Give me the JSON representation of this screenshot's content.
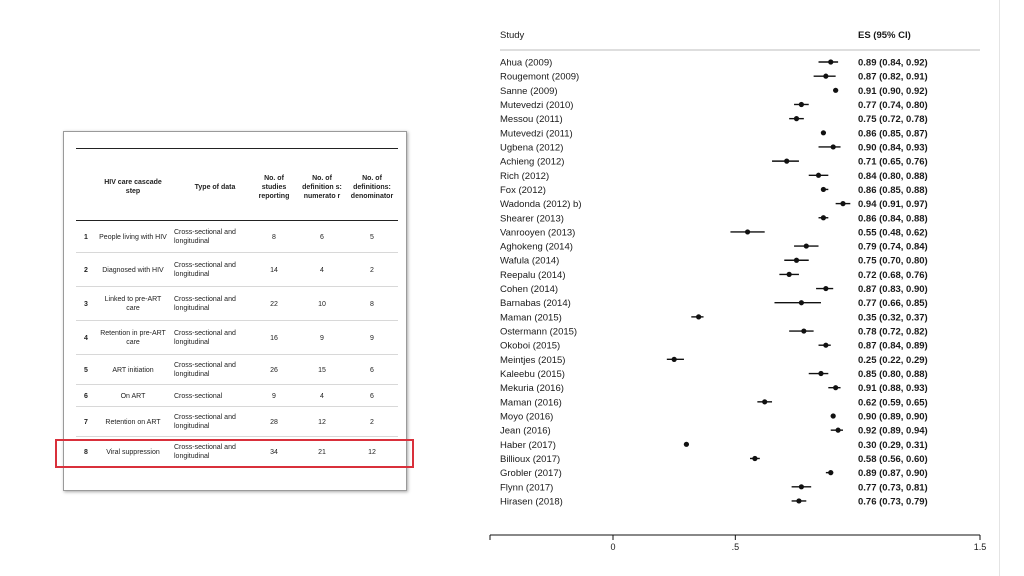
{
  "table": {
    "headers": {
      "step": "HIV care cascade step",
      "type": "Type of data",
      "studies": "No. of studies reporting",
      "numerator": "No. of definition s: numerato r",
      "denominator": "No. of definitions: denominator"
    },
    "rows": [
      {
        "num": "1",
        "step": "People living with HIV",
        "type": "Cross-sectional and longitudinal",
        "studies": "8",
        "numerator": "6",
        "denominator": "5"
      },
      {
        "num": "2",
        "step": "Diagnosed with HIV",
        "type": "Cross-sectional and longitudinal",
        "studies": "14",
        "numerator": "4",
        "denominator": "2"
      },
      {
        "num": "3",
        "step": "Linked to pre-ART care",
        "type": "Cross-sectional and longitudinal",
        "studies": "22",
        "numerator": "10",
        "denominator": "8"
      },
      {
        "num": "4",
        "step": "Retention in pre-ART care",
        "type": "Cross-sectional and longitudinal",
        "studies": "16",
        "numerator": "9",
        "denominator": "9"
      },
      {
        "num": "5",
        "step": "ART initiation",
        "type": "Cross-sectional and longitudinal",
        "studies": "26",
        "numerator": "15",
        "denominator": "6"
      },
      {
        "num": "6",
        "step": "On ART",
        "type": "Cross-sectional",
        "studies": "9",
        "numerator": "4",
        "denominator": "6"
      },
      {
        "num": "7",
        "step": "Retention on ART",
        "type": "Cross-sectional and longitudinal",
        "studies": "28",
        "numerator": "12",
        "denominator": "2"
      },
      {
        "num": "8",
        "step": "Viral suppression",
        "type": "Cross-sectional and longitudinal",
        "studies": "34",
        "numerator": "21",
        "denominator": "12"
      }
    ],
    "highlight_color": "#d9303b"
  },
  "chart_data": {
    "type": "scatter",
    "title": "",
    "column_headers": {
      "study": "Study",
      "estimate": "ES (95% CI)"
    },
    "xlim": [
      -0.5,
      1.5
    ],
    "x_ticks": [
      0,
      0.5,
      1.5
    ],
    "x_tick_labels": [
      "0",
      ".5",
      "1.5"
    ],
    "studies": [
      {
        "study": "Ahua (2009)",
        "es": 0.89,
        "lo": 0.84,
        "hi": 0.92,
        "label": "0.89 (0.84, 0.92)"
      },
      {
        "study": "Rougemont (2009)",
        "es": 0.87,
        "lo": 0.82,
        "hi": 0.91,
        "label": "0.87 (0.82, 0.91)"
      },
      {
        "study": "Sanne (2009)",
        "es": 0.91,
        "lo": 0.9,
        "hi": 0.92,
        "label": "0.91 (0.90, 0.92)"
      },
      {
        "study": "Mutevedzi (2010)",
        "es": 0.77,
        "lo": 0.74,
        "hi": 0.8,
        "label": "0.77 (0.74, 0.80)"
      },
      {
        "study": "Messou (2011)",
        "es": 0.75,
        "lo": 0.72,
        "hi": 0.78,
        "label": "0.75 (0.72, 0.78)"
      },
      {
        "study": "Mutevedzi (2011)",
        "es": 0.86,
        "lo": 0.85,
        "hi": 0.87,
        "label": "0.86 (0.85, 0.87)"
      },
      {
        "study": "Ugbena (2012)",
        "es": 0.9,
        "lo": 0.84,
        "hi": 0.93,
        "label": "0.90 (0.84, 0.93)"
      },
      {
        "study": "Achieng (2012)",
        "es": 0.71,
        "lo": 0.65,
        "hi": 0.76,
        "label": "0.71 (0.65, 0.76)"
      },
      {
        "study": "Rich (2012)",
        "es": 0.84,
        "lo": 0.8,
        "hi": 0.88,
        "label": "0.84 (0.80, 0.88)"
      },
      {
        "study": "Fox (2012)",
        "es": 0.86,
        "lo": 0.85,
        "hi": 0.88,
        "label": "0.86 (0.85, 0.88)"
      },
      {
        "study": "Wadonda (2012) b)",
        "es": 0.94,
        "lo": 0.91,
        "hi": 0.97,
        "label": "0.94 (0.91, 0.97)"
      },
      {
        "study": "Shearer (2013)",
        "es": 0.86,
        "lo": 0.84,
        "hi": 0.88,
        "label": "0.86 (0.84, 0.88)"
      },
      {
        "study": "Vanrooyen (2013)",
        "es": 0.55,
        "lo": 0.48,
        "hi": 0.62,
        "label": "0.55 (0.48, 0.62)"
      },
      {
        "study": "Aghokeng (2014)",
        "es": 0.79,
        "lo": 0.74,
        "hi": 0.84,
        "label": "0.79 (0.74, 0.84)"
      },
      {
        "study": "Wafula (2014)",
        "es": 0.75,
        "lo": 0.7,
        "hi": 0.8,
        "label": "0.75 (0.70, 0.80)"
      },
      {
        "study": "Reepalu (2014)",
        "es": 0.72,
        "lo": 0.68,
        "hi": 0.76,
        "label": "0.72 (0.68, 0.76)"
      },
      {
        "study": "Cohen (2014)",
        "es": 0.87,
        "lo": 0.83,
        "hi": 0.9,
        "label": "0.87 (0.83, 0.90)"
      },
      {
        "study": "Barnabas (2014)",
        "es": 0.77,
        "lo": 0.66,
        "hi": 0.85,
        "label": "0.77 (0.66, 0.85)"
      },
      {
        "study": "Maman (2015)",
        "es": 0.35,
        "lo": 0.32,
        "hi": 0.37,
        "label": "0.35 (0.32, 0.37)"
      },
      {
        "study": "Ostermann (2015)",
        "es": 0.78,
        "lo": 0.72,
        "hi": 0.82,
        "label": "0.78 (0.72, 0.82)"
      },
      {
        "study": "Okoboi (2015)",
        "es": 0.87,
        "lo": 0.84,
        "hi": 0.89,
        "label": "0.87 (0.84, 0.89)"
      },
      {
        "study": "Meintjes (2015)",
        "es": 0.25,
        "lo": 0.22,
        "hi": 0.29,
        "label": "0.25 (0.22, 0.29)"
      },
      {
        "study": "Kaleebu (2015)",
        "es": 0.85,
        "lo": 0.8,
        "hi": 0.88,
        "label": "0.85 (0.80, 0.88)"
      },
      {
        "study": "Mekuria (2016)",
        "es": 0.91,
        "lo": 0.88,
        "hi": 0.93,
        "label": "0.91 (0.88, 0.93)"
      },
      {
        "study": "Maman (2016)",
        "es": 0.62,
        "lo": 0.59,
        "hi": 0.65,
        "label": "0.62 (0.59, 0.65)"
      },
      {
        "study": "Moyo (2016)",
        "es": 0.9,
        "lo": 0.89,
        "hi": 0.9,
        "label": "0.90 (0.89, 0.90)"
      },
      {
        "study": "Jean (2016)",
        "es": 0.92,
        "lo": 0.89,
        "hi": 0.94,
        "label": "0.92 (0.89, 0.94)"
      },
      {
        "study": "Haber (2017)",
        "es": 0.3,
        "lo": 0.29,
        "hi": 0.31,
        "label": "0.30 (0.29, 0.31)"
      },
      {
        "study": "Billioux (2017)",
        "es": 0.58,
        "lo": 0.56,
        "hi": 0.6,
        "label": "0.58 (0.56, 0.60)"
      },
      {
        "study": "Grobler (2017)",
        "es": 0.89,
        "lo": 0.87,
        "hi": 0.9,
        "label": "0.89 (0.87, 0.90)"
      },
      {
        "study": "Flynn (2017)",
        "es": 0.77,
        "lo": 0.73,
        "hi": 0.81,
        "label": "0.77 (0.73, 0.81)"
      },
      {
        "study": "Hirasen (2018)",
        "es": 0.76,
        "lo": 0.73,
        "hi": 0.79,
        "label": "0.76 (0.73, 0.79)"
      }
    ]
  }
}
